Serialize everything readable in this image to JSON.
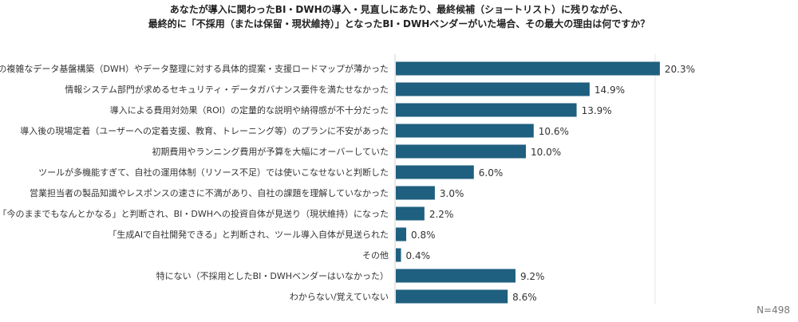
{
  "chart_data": {
    "type": "bar",
    "orientation": "horizontal",
    "title_lines": [
      "あなたが導入に関わったBI・DWHの導入・見直しにあたり、最終候補（ショートリスト）に残りながら、",
      "最終的に「不採用（または保留・現状維持）」となったBI・DWHベンダーがいた場合、その最大の理由は何ですか？"
    ],
    "categories": [
      "自社の複雑なデータ基盤構築（DWH）やデータ整理に対する具体的提案・支援ロードマップが薄かった",
      "情報システム部門が求めるセキュリティ・データガバナンス要件を満たせなかった",
      "導入による費用対効果（ROI）の定量的な説明や納得感が不十分だった",
      "導入後の現場定着（ユーザーへの定着支援、教育、トレーニング等）のプランに不安があった",
      "初期費用やランニング費用が予算を大幅にオーバーしていた",
      "ツールが多機能すぎて、自社の運用体制（リソース不足）では使いこなせないと判断した",
      "営業担当者の製品知識やレスポンスの速さに不満があり、自社の課題を理解していなかった",
      "「今のままでもなんとかなる」と判断され、BI・DWHへの投資自体が見送り（現状維持）になった",
      "「生成AIで自社開発できる」と判断され、ツール導入自体が見送られた",
      "その他",
      "特にない（不採用としたBI・DWHベンダーはいなかった）",
      "わからない/覚えていない"
    ],
    "values": [
      20.3,
      14.9,
      13.9,
      10.6,
      10.0,
      6.0,
      3.0,
      2.2,
      0.8,
      0.4,
      9.2,
      8.6
    ],
    "value_labels": [
      "20.3%",
      "14.9%",
      "13.9%",
      "10.6%",
      "10.0%",
      "6.0%",
      "3.0%",
      "2.2%",
      "0.8%",
      "0.4%",
      "9.2%",
      "8.6%"
    ],
    "xlim": [
      0,
      30
    ],
    "bar_color": "#1f5f7f",
    "note": "N=498"
  }
}
